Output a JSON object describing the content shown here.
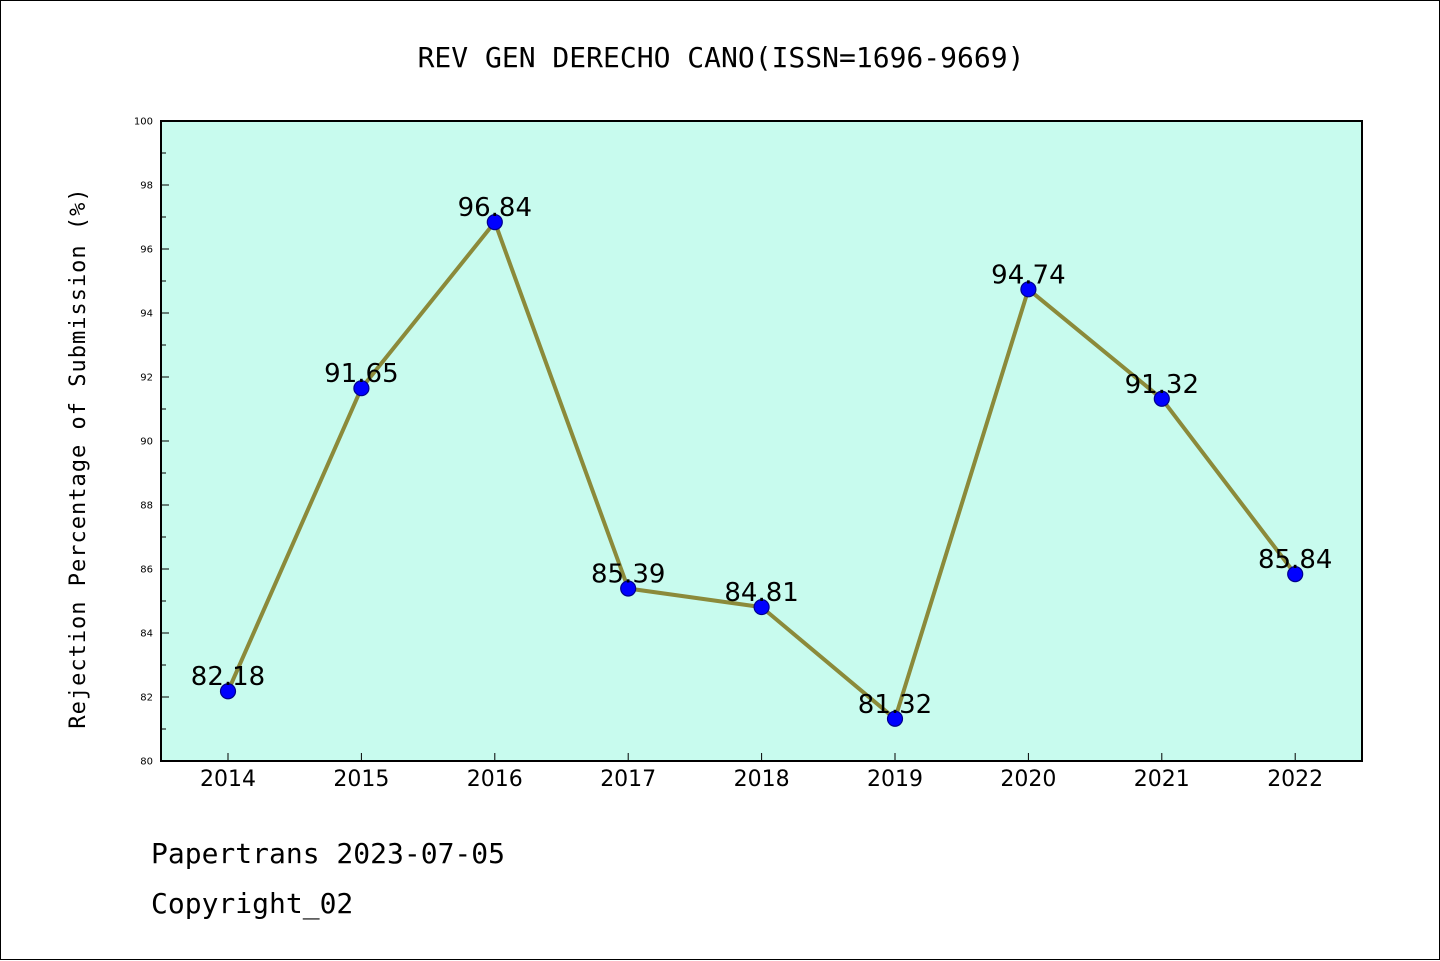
{
  "footer": {
    "line1": "Papertrans 2023-07-05",
    "line2": "Copyright_02"
  },
  "chart_data": {
    "type": "line",
    "title": "REV GEN DERECHO CANO(ISSN=1696-9669)",
    "xlabel": "",
    "ylabel": "Rejection Percentage of Submission (%)",
    "categories": [
      "2014",
      "2015",
      "2016",
      "2017",
      "2018",
      "2019",
      "2020",
      "2021",
      "2022"
    ],
    "values": [
      82.18,
      91.65,
      96.84,
      85.39,
      84.81,
      81.32,
      94.74,
      91.32,
      85.84
    ],
    "data_labels": [
      "82.18",
      "91.65",
      "96.84",
      "85.39",
      "84.81",
      "81.32",
      "94.74",
      "91.32",
      "85.84"
    ],
    "ylim": [
      80,
      100
    ],
    "yticks": [
      "80",
      "82",
      "84",
      "86",
      "88",
      "90",
      "92",
      "94",
      "96",
      "98",
      "100"
    ],
    "grid": false,
    "legend": "none",
    "colors": {
      "plot_background": "#c8fbee",
      "line": "#8b8a3a",
      "marker": "#0000ff",
      "marker_edge": "#00008b",
      "axes": "#000000"
    }
  }
}
